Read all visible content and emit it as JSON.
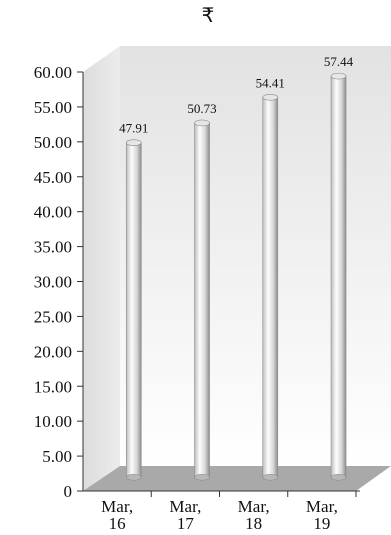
{
  "chart_data": {
    "type": "bar",
    "unit_label": "₹",
    "categories": [
      [
        "Mar,",
        "16"
      ],
      [
        "Mar,",
        "17"
      ],
      [
        "Mar,",
        "18"
      ],
      [
        "Mar,",
        "19"
      ]
    ],
    "values": [
      47.91,
      50.73,
      54.41,
      57.44
    ],
    "data_labels": [
      "47.91",
      "50.73",
      "54.41",
      "57.44"
    ],
    "y_ticks": [
      0,
      5,
      10,
      15,
      20,
      25,
      30,
      35,
      40,
      45,
      50,
      55,
      60
    ],
    "y_tick_labels": [
      "0",
      "5.00",
      "10.00",
      "15.00",
      "20.00",
      "25.00",
      "30.00",
      "35.00",
      "40.00",
      "45.00",
      "50.00",
      "55.00",
      "60.00"
    ],
    "ylim": [
      0,
      60
    ],
    "grid": false,
    "legend": "none",
    "colors": {
      "bar_light": "#fbfbfb",
      "bar_dark": "#9d9d9d",
      "floor": "#a9a9a9",
      "wall_top": "#e2e2e2",
      "wall_bottom": "#ffffff"
    }
  }
}
